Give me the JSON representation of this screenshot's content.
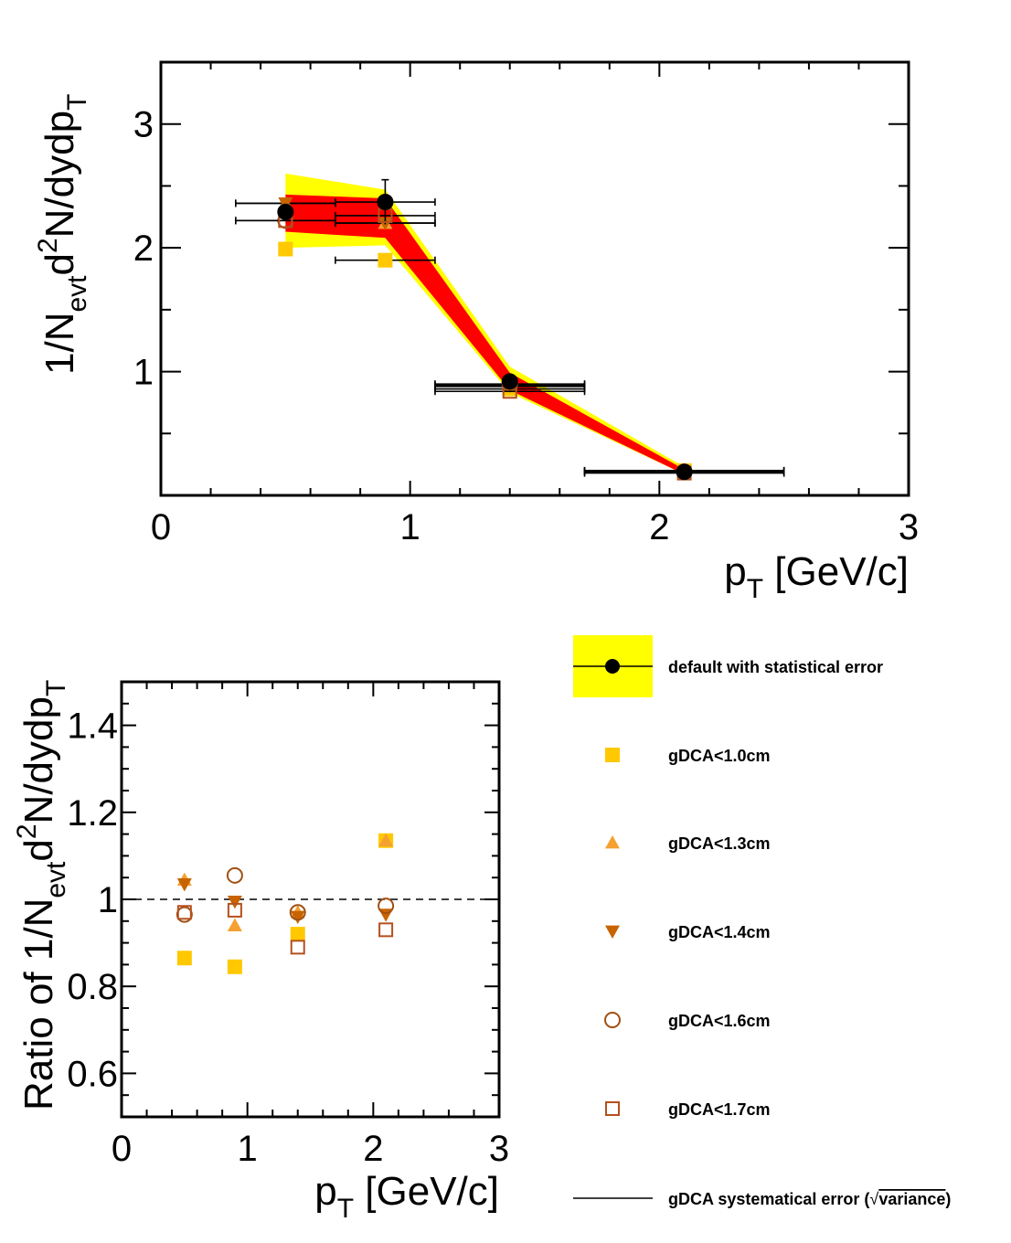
{
  "colors": {
    "default": "#000000",
    "stat_band": "#ffff00",
    "syst_band": "#ff0000",
    "gdca_1_0": "#ffc800",
    "gdca_1_3": "#f5a030",
    "gdca_1_4": "#c86400",
    "gdca_1_6": "#a05014",
    "gdca_1_7": "#b4501e"
  },
  "legend": {
    "items": [
      {
        "key": "default",
        "label": "default with statistical error",
        "marker": "filled-circle-on-yellow-band"
      },
      {
        "key": "gdca_1_0",
        "label": "gDCA<1.0cm",
        "marker": "filled-square"
      },
      {
        "key": "gdca_1_3",
        "label": "gDCA<1.3cm",
        "marker": "filled-triangle-up"
      },
      {
        "key": "gdca_1_4",
        "label": "gDCA<1.4cm",
        "marker": "filled-triangle-down"
      },
      {
        "key": "gdca_1_6",
        "label": "gDCA<1.6cm",
        "marker": "open-circle"
      },
      {
        "key": "gdca_1_7",
        "label": "gDCA<1.7cm",
        "marker": "open-square"
      },
      {
        "key": "syst",
        "label_prefix": "gDCA systematical error (",
        "label_root": "variance",
        "label_suffix": ")",
        "marker": "line"
      }
    ]
  },
  "chart_data": [
    {
      "type": "line",
      "panel": "top",
      "xlabel": {
        "main": "p",
        "sub": "T",
        "rest": " [GeV/c]"
      },
      "ylabel": {
        "p1": "1/N",
        "sub1": "evt",
        "p2": "d",
        "sup": "2",
        "p3": "N/dydp",
        "sub2": "T"
      },
      "xlim": [
        0,
        3
      ],
      "ylim": [
        0,
        3.5
      ],
      "xticks": [
        "0",
        "1",
        "2",
        "3"
      ],
      "yticks": [
        "1",
        "2",
        "3"
      ],
      "x": [
        0.5,
        0.9,
        1.4,
        2.1
      ],
      "default": [
        2.29,
        2.37,
        0.92,
        0.19
      ],
      "stat_band": {
        "lower": [
          2.0,
          2.02,
          0.83,
          0.17
        ],
        "upper": [
          2.6,
          2.47,
          1.04,
          0.23
        ]
      },
      "syst_band": {
        "lower": [
          2.13,
          2.08,
          0.85,
          0.17
        ],
        "upper": [
          2.43,
          2.4,
          0.99,
          0.21
        ]
      },
      "series": [
        {
          "key": "gdca_1_0",
          "x": [
            0.5,
            0.9,
            1.4,
            2.1
          ],
          "values": [
            1.99,
            1.9,
            0.86,
            0.2
          ],
          "xerr": [
            0.0,
            0.2,
            0.3,
            0.4
          ],
          "yerr": [
            0.0,
            0.0,
            0.0,
            0.0
          ]
        },
        {
          "key": "gdca_1_3",
          "x": [
            0.5,
            0.9,
            1.4,
            2.1
          ],
          "values": [
            2.36,
            2.2,
            0.88,
            0.2
          ],
          "xerr": [
            0.2,
            0.2,
            0.3,
            0.4
          ],
          "yerr": [
            0.04,
            0.0,
            0.0,
            0.0
          ]
        },
        {
          "key": "gdca_1_4",
          "x": [
            0.5,
            0.9,
            1.4,
            2.1
          ],
          "values": [
            2.36,
            2.2,
            0.89,
            0.19
          ],
          "xerr": [
            0.2,
            0.2,
            0.3,
            0.4
          ],
          "yerr": [
            0.04,
            0.0,
            0.0,
            0.0
          ]
        },
        {
          "key": "gdca_1_6",
          "x": [
            0.5,
            0.9,
            1.4,
            2.1
          ],
          "values": [
            2.22,
            2.37,
            0.9,
            0.19
          ],
          "xerr": [
            0.2,
            0.2,
            0.3,
            0.4
          ],
          "yerr": [
            0.0,
            0.18,
            0.0,
            0.0
          ]
        },
        {
          "key": "gdca_1_7",
          "x": [
            0.5,
            0.9,
            1.4,
            2.1
          ],
          "values": [
            2.22,
            2.26,
            0.84,
            0.18
          ],
          "xerr": [
            0.2,
            0.2,
            0.3,
            0.4
          ],
          "yerr": [
            0.0,
            0.0,
            0.0,
            0.0
          ]
        },
        {
          "key": "default",
          "x": [
            0.5,
            0.9,
            1.4,
            2.1
          ],
          "values": [
            2.29,
            2.37,
            0.92,
            0.19
          ],
          "xerr": [
            0.0,
            0.0,
            0.0,
            0.0
          ],
          "yerr": [
            0.0,
            0.0,
            0.0,
            0.0
          ]
        }
      ]
    },
    {
      "type": "scatter",
      "panel": "bottom",
      "xlabel": {
        "main": "p",
        "sub": "T",
        "rest": " [GeV/c]"
      },
      "ylabel": {
        "p0": "Ratio of ",
        "p1": "1/N",
        "sub1": "evt",
        "p2": "d",
        "sup": "2",
        "p3": "N/dydp",
        "sub2": "T"
      },
      "xlim": [
        0,
        3
      ],
      "ylim": [
        0.5,
        1.5
      ],
      "xticks": [
        "0",
        "1",
        "2",
        "3"
      ],
      "yticks": [
        "0.6",
        "0.8",
        "1",
        "1.2",
        "1.4"
      ],
      "reference_line": 1.0,
      "x": [
        0.5,
        0.9,
        1.4,
        2.1
      ],
      "series": [
        {
          "key": "gdca_1_0",
          "values": [
            0.865,
            0.845,
            0.92,
            1.135
          ]
        },
        {
          "key": "gdca_1_3",
          "values": [
            1.045,
            0.94,
            0.97,
            1.135
          ]
        },
        {
          "key": "gdca_1_4",
          "values": [
            1.035,
            0.995,
            0.96,
            0.965
          ]
        },
        {
          "key": "gdca_1_6",
          "values": [
            0.965,
            1.055,
            0.97,
            0.985
          ]
        },
        {
          "key": "gdca_1_7",
          "values": [
            0.97,
            0.975,
            0.89,
            0.93
          ]
        }
      ]
    }
  ]
}
